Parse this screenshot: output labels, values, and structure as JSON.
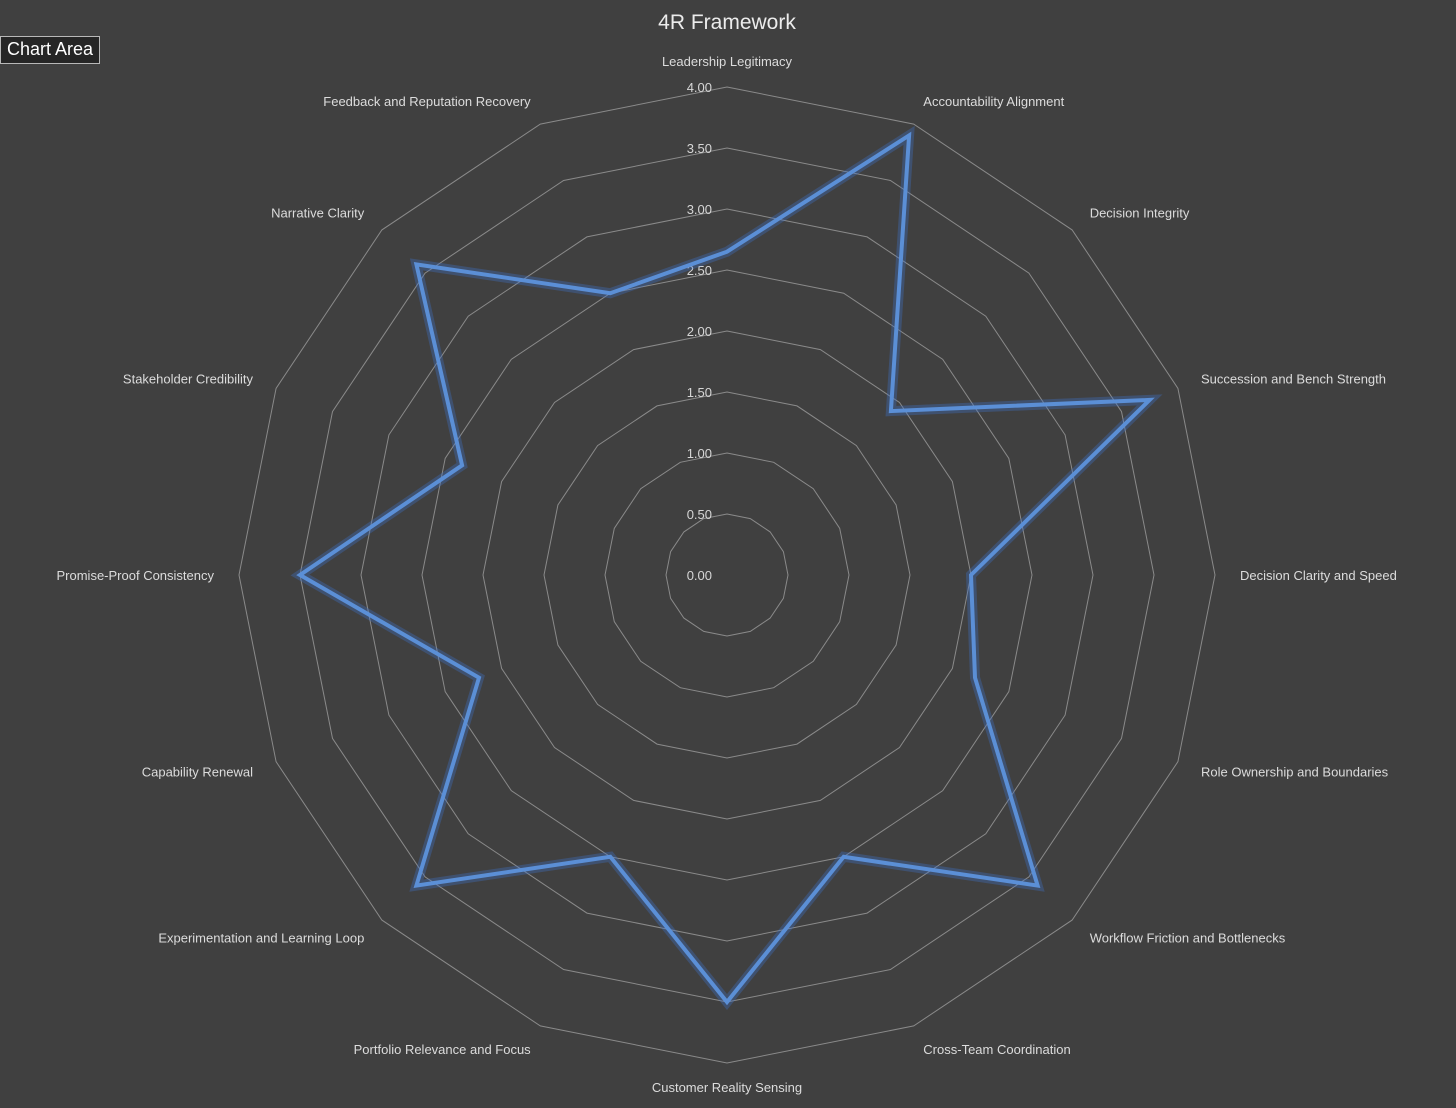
{
  "tooltip": "Chart Area",
  "chart_data": {
    "type": "radar",
    "title": "4R Framework",
    "categories": [
      "Leadership Legitimacy",
      "Accountability Alignment",
      "Decision Integrity",
      "Succession and Bench Strength",
      "Decision Clarity and Speed",
      "Role Ownership and Boundaries",
      "Workflow Friction and Bottlenecks",
      "Cross-Team Coordination",
      "Customer Reality Sensing",
      "Portfolio Relevance and Focus",
      "Experimentation and Learning Loop",
      "Capability Renewal",
      "Promise-Proof Consistency",
      "Stakeholder Credibility",
      "Narrative Clarity",
      "Feedback and Reputation Recovery"
    ],
    "series": [
      {
        "values": [
          2.65,
          3.9,
          1.9,
          3.75,
          2.0,
          2.2,
          3.6,
          2.5,
          3.5,
          2.5,
          3.6,
          2.2,
          3.5,
          2.35,
          3.6,
          2.5
        ]
      }
    ],
    "rlim": [
      0,
      4
    ],
    "ticks": [
      "0.00",
      "0.50",
      "1.00",
      "1.50",
      "2.00",
      "2.50",
      "3.00",
      "3.50",
      "4.00"
    ],
    "grid": true,
    "legend": false,
    "colors": {
      "background": "#404040",
      "series": "#5b8fd6",
      "grid": "#8a8a8a"
    }
  }
}
